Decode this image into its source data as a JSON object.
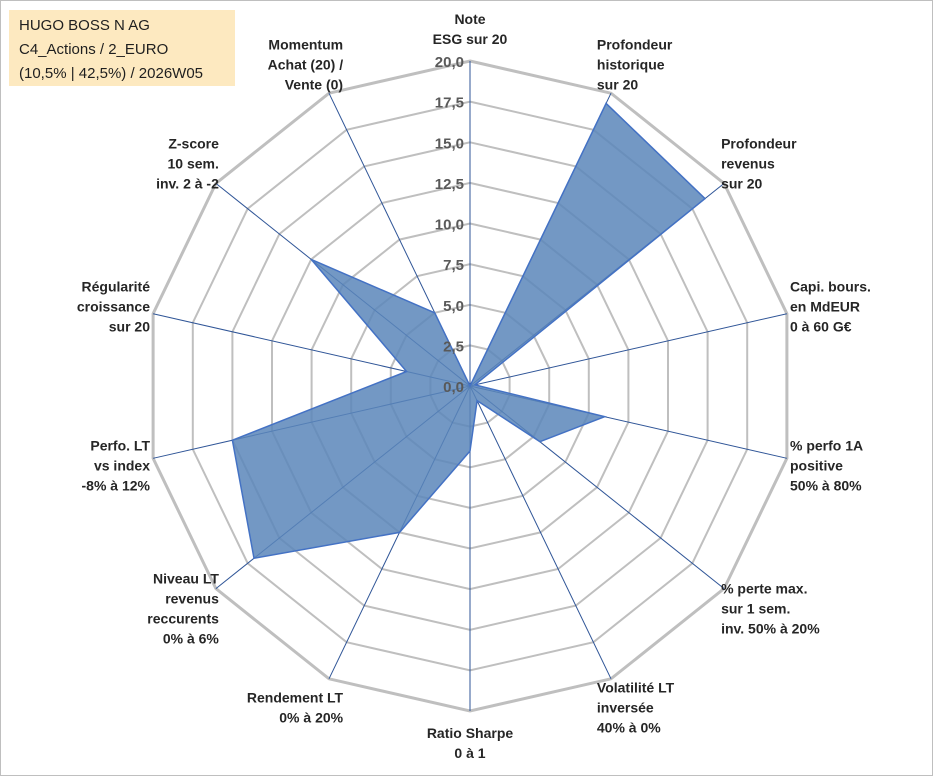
{
  "info_box": {
    "line1": "HUGO BOSS N AG",
    "line2": "C4_Actions / 2_EURO",
    "line3": "(10,5% | 42,5%) / 2026W05"
  },
  "colors": {
    "fill": "#5b86ba",
    "series_line": "#4472c4",
    "grid": "#bfbfbf",
    "spoke": "#2f5597"
  },
  "chart_data": {
    "type": "radar",
    "title": "",
    "rmin": 0,
    "rmax": 20,
    "tick_step": 2.5,
    "tick_labels": [
      "0,0",
      "2,5",
      "5,0",
      "7,5",
      "10,0",
      "12,5",
      "15,0",
      "17,5",
      "20,0"
    ],
    "axes": [
      {
        "label": [
          "Note",
          "ESG sur 20"
        ],
        "value": 0
      },
      {
        "label": [
          "Profondeur",
          "historique",
          "sur 20"
        ],
        "value": 19.3
      },
      {
        "label": [
          "Profondeur",
          "revenus",
          "sur 20"
        ],
        "value": 18.5
      },
      {
        "label": [
          "Capi. bours.",
          "en MdEUR",
          "0 à 60 G€"
        ],
        "value": 0.3
      },
      {
        "label": [
          "% perfo 1A",
          "positive",
          "50% à 80%"
        ],
        "value": 8.5
      },
      {
        "label": [
          "% perte max.",
          "sur 1 sem.",
          "inv. 50% à 20%"
        ],
        "value": 5.5
      },
      {
        "label": [
          "Volatilité LT",
          "inversée",
          "40% à 0%"
        ],
        "value": 1.0
      },
      {
        "label": [
          "Ratio Sharpe",
          "0 à 1"
        ],
        "value": 4.0
      },
      {
        "label": [
          "Rendement LT",
          "0% à 20%"
        ],
        "value": 10.0
      },
      {
        "label": [
          "Niveau LT",
          "revenus",
          "reccurents",
          "0% à 6%"
        ],
        "value": 17.0
      },
      {
        "label": [
          "Perfo. LT",
          "vs index",
          "-8% à 12%"
        ],
        "value": 15.0
      },
      {
        "label": [
          "Régularité",
          "croissance",
          "sur 20"
        ],
        "value": 4.0
      },
      {
        "label": [
          "Z-score",
          "10 sem.",
          "inv. 2 à -2"
        ],
        "value": 12.5
      },
      {
        "label": [
          "Momentum",
          "Achat (20) /",
          "Vente (0)"
        ],
        "value": 5.0
      }
    ]
  }
}
